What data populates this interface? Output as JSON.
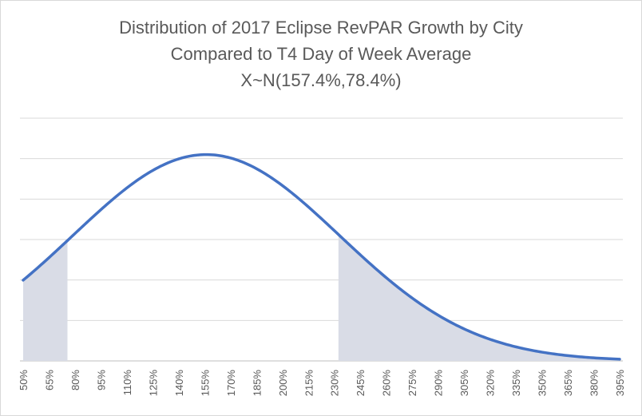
{
  "chart_data": {
    "type": "area",
    "title_lines": [
      "Distribution of 2017 Eclipse RevPAR Growth by City",
      "Compared to T4 Day of Week Average",
      "X~N(157.4%,78.4%)"
    ],
    "distribution": {
      "mean": 1.574,
      "sd": 0.784
    },
    "x_range": [
      0.5,
      4.0
    ],
    "x_tick_labels": [
      "50%",
      "65%",
      "80%",
      "95%",
      "110%",
      "125%",
      "140%",
      "155%",
      "170%",
      "185%",
      "200%",
      "215%",
      "230%",
      "245%",
      "260%",
      "275%",
      "290%",
      "305%",
      "320%",
      "335%",
      "350%",
      "365%",
      "380%",
      "395%"
    ],
    "shaded_regions": [
      [
        0.5,
        0.76
      ],
      [
        2.35,
        4.0
      ]
    ],
    "gridlines": 6,
    "grid": true,
    "legend": "none",
    "colors": {
      "line": "#4472c4",
      "shade": "#d9dce6",
      "grid": "#d9d9d9",
      "text": "#595959"
    }
  }
}
